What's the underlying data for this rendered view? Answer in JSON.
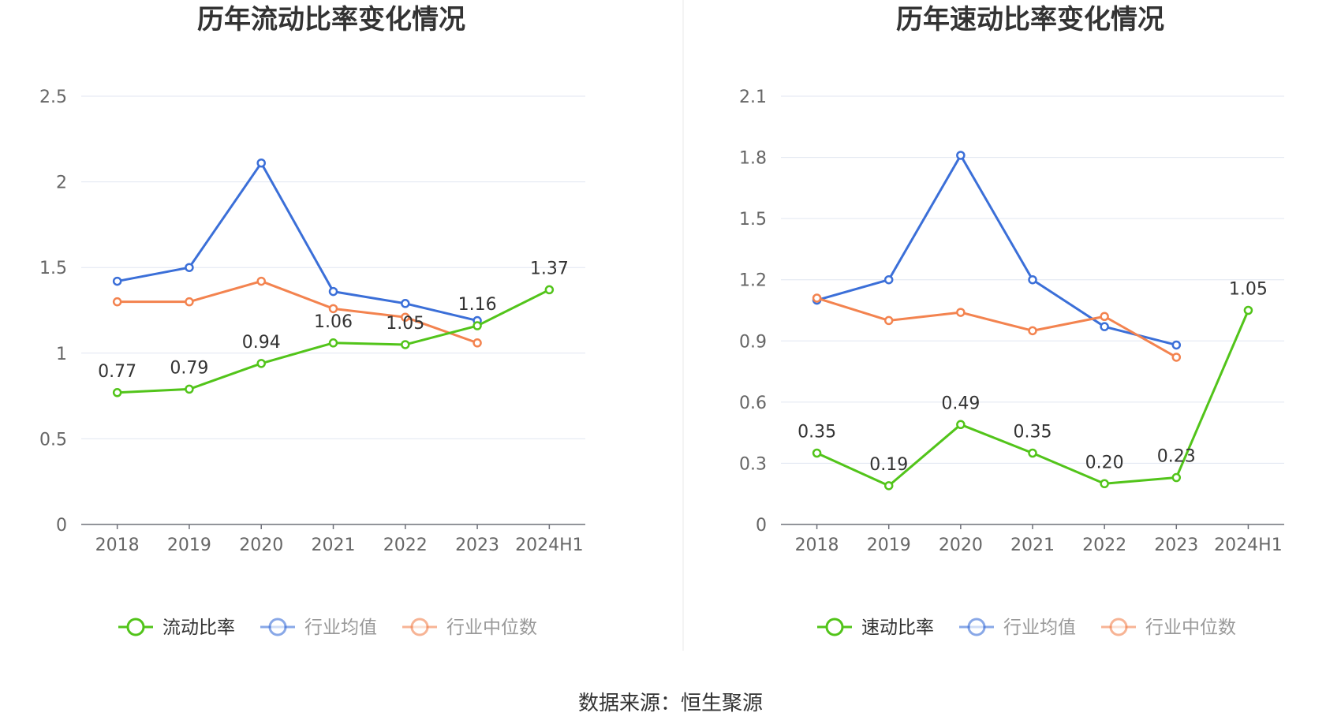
{
  "source_text": "数据来源：恒生聚源",
  "chart_data": [
    {
      "type": "line",
      "title": "历年流动比率变化情况",
      "categories": [
        "2018",
        "2019",
        "2020",
        "2021",
        "2022",
        "2023",
        "2024H1"
      ],
      "ylim": [
        0,
        2.5
      ],
      "yticks": [
        "0",
        "0.5",
        "1",
        "1.5",
        "2",
        "2.5"
      ],
      "grid": true,
      "legend_position": "bottom",
      "series": [
        {
          "name": "流动比率",
          "color": "#52c41a",
          "values": [
            0.77,
            0.79,
            0.94,
            1.06,
            1.05,
            1.16,
            1.37
          ],
          "labels": [
            "0.77",
            "0.79",
            "0.94",
            "1.06",
            "1.05",
            "1.16",
            "1.37"
          ]
        },
        {
          "name": "行业均值",
          "color": "#3b6fd8",
          "values": [
            1.42,
            1.5,
            2.11,
            1.36,
            1.29,
            1.19,
            null
          ]
        },
        {
          "name": "行业中位数",
          "color": "#f3834f",
          "values": [
            1.3,
            1.3,
            1.42,
            1.26,
            1.21,
            1.06,
            null
          ]
        }
      ]
    },
    {
      "type": "line",
      "title": "历年速动比率变化情况",
      "categories": [
        "2018",
        "2019",
        "2020",
        "2021",
        "2022",
        "2023",
        "2024H1"
      ],
      "ylim": [
        0,
        2.1
      ],
      "yticks": [
        "0",
        "0.3",
        "0.6",
        "0.9",
        "1.2",
        "1.5",
        "1.8",
        "2.1"
      ],
      "grid": true,
      "legend_position": "bottom",
      "series": [
        {
          "name": "速动比率",
          "color": "#52c41a",
          "values": [
            0.35,
            0.19,
            0.49,
            0.35,
            0.2,
            0.23,
            1.05
          ],
          "labels": [
            "0.35",
            "0.19",
            "0.49",
            "0.35",
            "0.20",
            "0.23",
            "1.05"
          ]
        },
        {
          "name": "行业均值",
          "color": "#3b6fd8",
          "values": [
            1.1,
            1.2,
            1.81,
            1.2,
            0.97,
            0.88,
            null
          ]
        },
        {
          "name": "行业中位数",
          "color": "#f3834f",
          "values": [
            1.11,
            1.0,
            1.04,
            0.95,
            1.02,
            0.82,
            null
          ]
        }
      ]
    }
  ]
}
